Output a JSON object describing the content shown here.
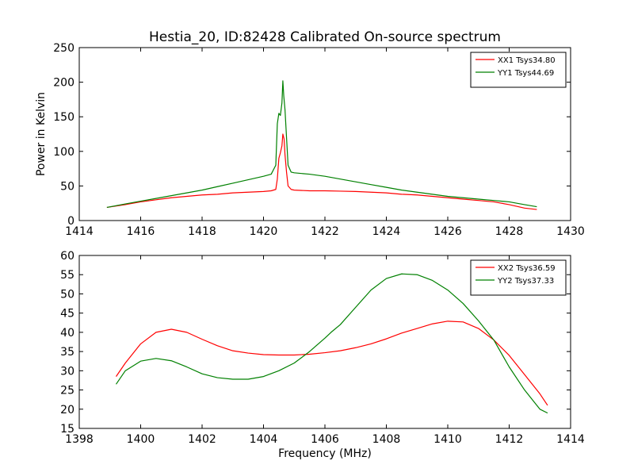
{
  "chart_data": [
    {
      "type": "line",
      "title": "Hestia_20, ID:82428 Calibrated On-source spectrum",
      "xlabel": "",
      "ylabel": "Power in Kelvin",
      "xlim": [
        1414,
        1430
      ],
      "ylim": [
        0,
        250
      ],
      "xticks": [
        1414,
        1416,
        1418,
        1420,
        1422,
        1424,
        1426,
        1428,
        1430
      ],
      "yticks": [
        0,
        50,
        100,
        150,
        200,
        250
      ],
      "legend": "top-right",
      "series": [
        {
          "name": "XX1 Tsys34.80",
          "color": "#ff0000",
          "x": [
            1414.9,
            1415.5,
            1416,
            1416.5,
            1417,
            1417.5,
            1418,
            1418.5,
            1419,
            1419.5,
            1420,
            1420.25,
            1420.4,
            1420.45,
            1420.5,
            1420.55,
            1420.6,
            1420.63,
            1420.67,
            1420.7,
            1420.75,
            1420.8,
            1420.9,
            1421,
            1421.5,
            1422,
            1422.5,
            1423,
            1423.5,
            1424,
            1424.5,
            1425,
            1425.5,
            1426,
            1426.5,
            1427,
            1427.5,
            1428,
            1428.5,
            1428.9
          ],
          "y": [
            19,
            23,
            27,
            30,
            33,
            35,
            37,
            38,
            40,
            41,
            42,
            43,
            45,
            60,
            90,
            98,
            108,
            125,
            118,
            95,
            70,
            50,
            45,
            44,
            43,
            43,
            42.5,
            42,
            41,
            40,
            38,
            37,
            35,
            33,
            31,
            29,
            27,
            23,
            18,
            16
          ]
        },
        {
          "name": "YY1 Tsys44.69",
          "color": "#008000",
          "x": [
            1414.9,
            1415.5,
            1416,
            1416.5,
            1417,
            1417.5,
            1418,
            1418.5,
            1419,
            1419.5,
            1420,
            1420.25,
            1420.4,
            1420.45,
            1420.5,
            1420.55,
            1420.6,
            1420.63,
            1420.66,
            1420.7,
            1420.75,
            1420.8,
            1420.9,
            1421,
            1421.5,
            1422,
            1422.5,
            1423,
            1423.5,
            1424,
            1424.5,
            1425,
            1425.5,
            1426,
            1426.5,
            1427,
            1427.5,
            1428,
            1428.5,
            1428.9
          ],
          "y": [
            19,
            24,
            28,
            32,
            36,
            40,
            44,
            49,
            54,
            59,
            64,
            67,
            80,
            140,
            155,
            152,
            170,
            202,
            180,
            160,
            120,
            80,
            70,
            69,
            67,
            64,
            60,
            56,
            52,
            48,
            44,
            41,
            38,
            35,
            33,
            31,
            29,
            27,
            23,
            20
          ]
        }
      ]
    },
    {
      "type": "line",
      "title": "",
      "xlabel": "Frequency (MHz)",
      "ylabel": "",
      "xlim": [
        1398,
        1414
      ],
      "ylim": [
        15,
        60
      ],
      "xticks": [
        1398,
        1400,
        1402,
        1404,
        1406,
        1408,
        1410,
        1412,
        1414
      ],
      "yticks": [
        15,
        20,
        25,
        30,
        35,
        40,
        45,
        50,
        55,
        60
      ],
      "legend": "top-right",
      "series": [
        {
          "name": "XX2 Tsys36.59",
          "color": "#ff0000",
          "x": [
            1399.2,
            1399.5,
            1400,
            1400.5,
            1401,
            1401.5,
            1402,
            1402.5,
            1403,
            1403.5,
            1404,
            1404.5,
            1405,
            1405.5,
            1406,
            1406.5,
            1407,
            1407.5,
            1408,
            1408.5,
            1409,
            1409.5,
            1410,
            1410.5,
            1411,
            1411.5,
            1412,
            1412.5,
            1413,
            1413.25
          ],
          "y": [
            28.5,
            32,
            37,
            40,
            40.8,
            40,
            38.2,
            36.5,
            35.2,
            34.6,
            34.2,
            34.1,
            34.1,
            34.3,
            34.7,
            35.2,
            36,
            37,
            38.3,
            39.8,
            41,
            42.2,
            42.9,
            42.7,
            41,
            38,
            34,
            29,
            24,
            21
          ]
        },
        {
          "name": "YY2 Tsys37.33",
          "color": "#008000",
          "x": [
            1399.2,
            1399.5,
            1400,
            1400.5,
            1401,
            1401.5,
            1402,
            1402.5,
            1403,
            1403.5,
            1404,
            1404.5,
            1405,
            1405.5,
            1406,
            1406.2,
            1406.5,
            1407,
            1407.5,
            1408,
            1408.5,
            1409,
            1409.5,
            1410,
            1410.5,
            1411,
            1411.5,
            1412,
            1412.5,
            1413,
            1413.25
          ],
          "y": [
            26.5,
            30,
            32.5,
            33.2,
            32.6,
            31,
            29.2,
            28.2,
            27.8,
            27.8,
            28.5,
            30,
            32,
            35,
            38.5,
            40,
            42,
            46.5,
            51,
            54,
            55.2,
            55,
            53.5,
            51,
            47.5,
            43,
            38,
            31,
            25,
            20,
            19
          ]
        }
      ]
    }
  ]
}
